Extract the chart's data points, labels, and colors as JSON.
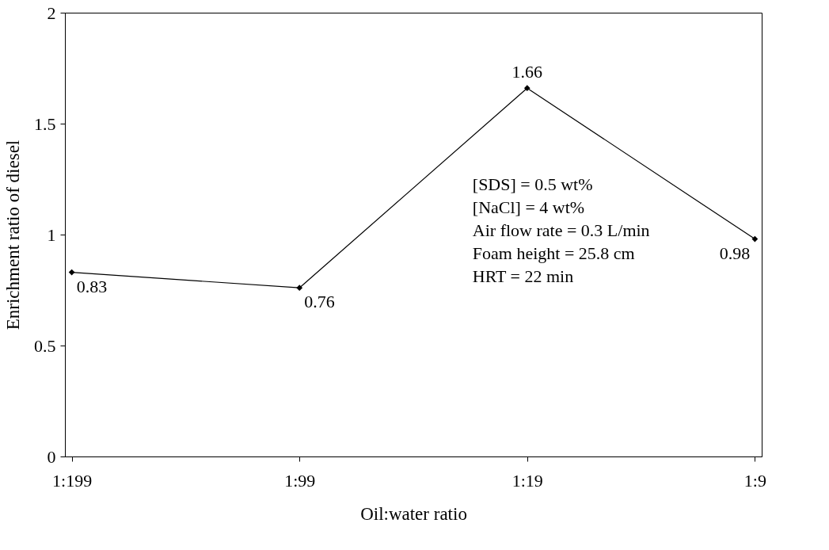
{
  "chart_data": {
    "type": "line",
    "xlabel": "Oil:water ratio",
    "ylabel": "Enrichment ratio of diesel",
    "categories": [
      "1:199",
      "1:99",
      "1:19",
      "1:9"
    ],
    "series": [
      {
        "color": "#000000",
        "values": [
          0.83,
          0.76,
          1.66,
          0.98
        ]
      }
    ],
    "ylim": [
      0,
      2
    ],
    "yticks": [
      0,
      0.5,
      1,
      1.5,
      2
    ],
    "data_labels": true,
    "grid": false,
    "legend": false,
    "marker": "diamond",
    "line_style": "solid",
    "annotations": [
      "[SDS] = 0.5 wt%",
      "[NaCl] = 4 wt%",
      "Air flow rate = 0.3 L/min",
      "Foam height = 25.8 cm",
      "HRT = 22 min"
    ]
  }
}
